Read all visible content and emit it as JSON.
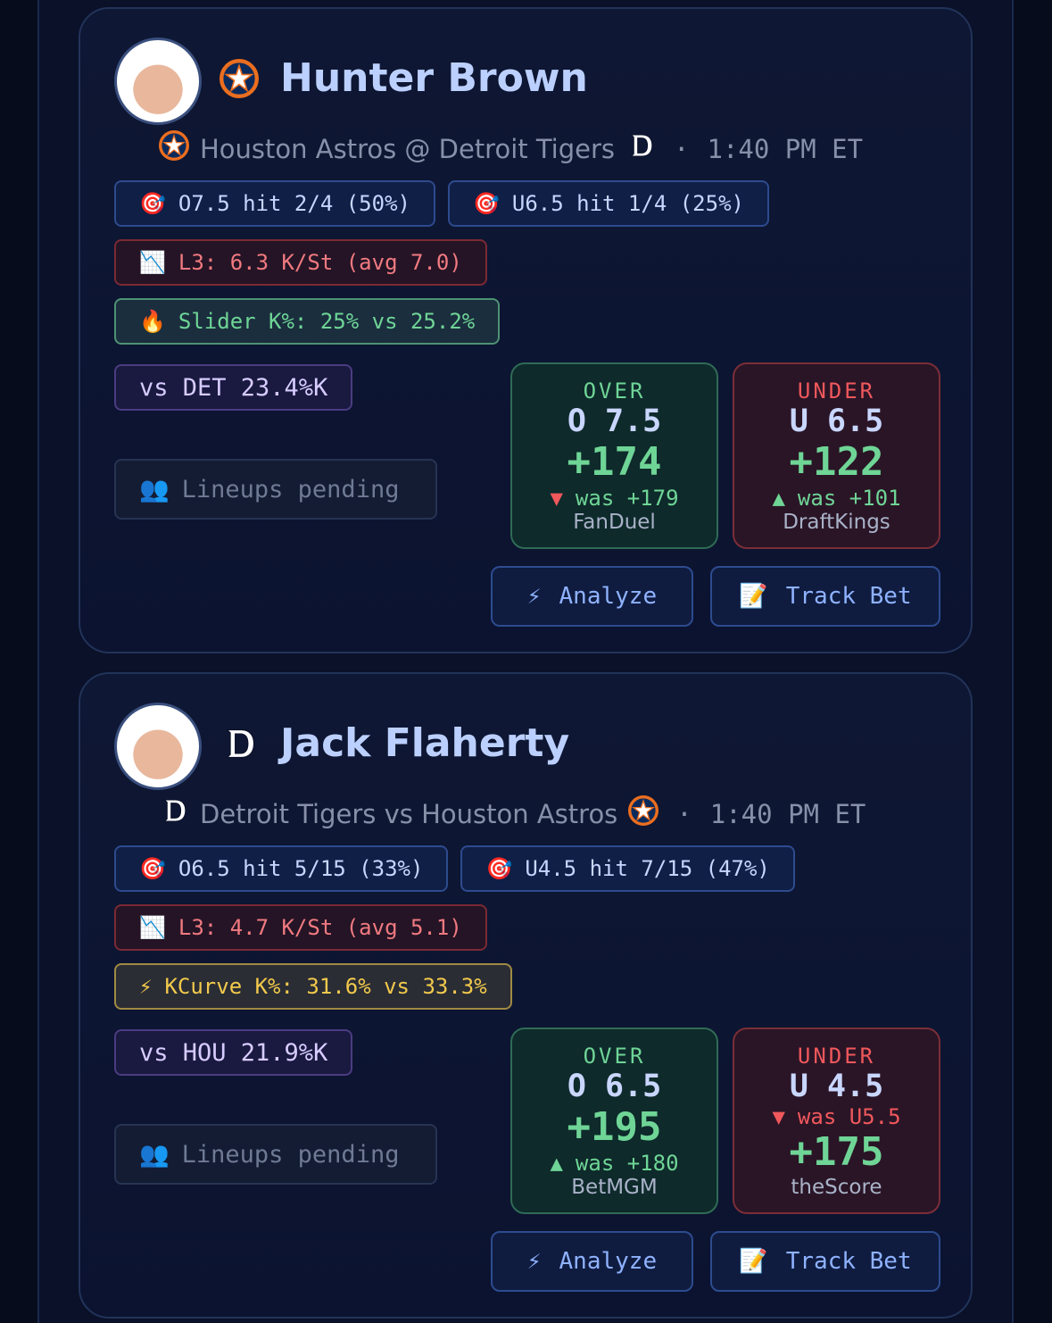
{
  "cards": [
    {
      "pitcher": "Hunter Brown",
      "matchup": "Houston Astros @ Detroit Tigers",
      "separator": "·",
      "time": "1:40 PM ET",
      "hit_rates": [
        {
          "icon": "🎯",
          "text": "O7.5 hit 2/4 (50%)"
        },
        {
          "icon": "🎯",
          "text": "U6.5 hit 1/4 (25%)"
        }
      ],
      "trend": {
        "icon": "📉",
        "text": "L3: 6.3 K/St (avg 7.0)"
      },
      "pitch": {
        "icon": "🔥",
        "text": "Slider K%: 25% vs 25.2%",
        "color": "#6fd596"
      },
      "opponent": "vs DET 23.4%K",
      "lineups": {
        "icon": "👥",
        "text": "Lineups pending"
      },
      "over": {
        "label": "OVER",
        "line": "O 7.5",
        "odds": "+174",
        "movement": {
          "arrow": "▼",
          "text": "was +179",
          "color": "#6fd596"
        },
        "book": "FanDuel"
      },
      "under": {
        "label": "UNDER",
        "line": "U 6.5",
        "odds": "+122",
        "movement": {
          "arrow": "▲",
          "text": "was +101",
          "color": "#6fd596"
        },
        "book": "DraftKings"
      },
      "actions": [
        {
          "icon": "⚡",
          "text": "Analyze"
        },
        {
          "icon": "📝",
          "text": "Track Bet"
        }
      ]
    },
    {
      "pitcher": "Jack Flaherty",
      "matchup": "Detroit Tigers vs Houston Astros",
      "separator": "·",
      "time": "1:40 PM ET",
      "hit_rates": [
        {
          "icon": "🎯",
          "text": "O6.5 hit 5/15 (33%)"
        },
        {
          "icon": "🎯",
          "text": "U4.5 hit 7/15 (47%)"
        }
      ],
      "trend": {
        "icon": "📉",
        "text": "L3: 4.7 K/St (avg 5.1)"
      },
      "pitch": {
        "icon": "⚡",
        "text": "KCurve K%: 31.6% vs 33.3%",
        "color": "#f2c94c"
      },
      "opponent": "vs HOU 21.9%K",
      "lineups": {
        "icon": "👥",
        "text": "Lineups pending"
      },
      "over": {
        "label": "OVER",
        "line": "O 6.5",
        "odds": "+195",
        "movement": {
          "arrow": "▲",
          "text": "was +180",
          "color": "#6fd596"
        },
        "book": "BetMGM"
      },
      "under": {
        "label": "UNDER",
        "line": "U 4.5",
        "movement": {
          "arrow": "▼",
          "text": "was U5.5",
          "color": "#f0585c"
        },
        "odds": "+175",
        "book": "theScore"
      },
      "actions": [
        {
          "icon": "⚡",
          "text": "Analyze"
        },
        {
          "icon": "📝",
          "text": "Track Bet"
        }
      ]
    }
  ]
}
